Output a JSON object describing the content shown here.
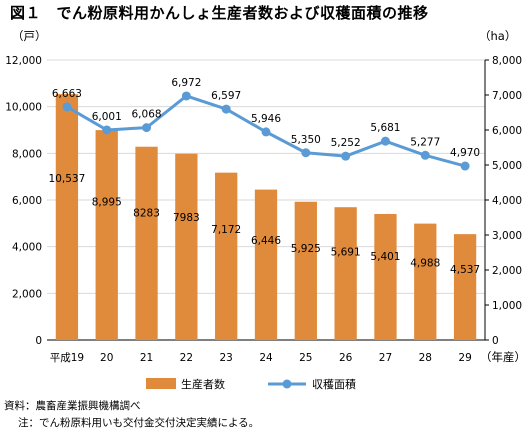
{
  "title": "図１　でん粉原料用かんしょ生産者数および収穫面積の推移",
  "chart_data": {
    "type": "bar+line",
    "categories": [
      "平成19",
      "20",
      "21",
      "22",
      "23",
      "24",
      "25",
      "26",
      "27",
      "28",
      "29"
    ],
    "x_unit": "（年産）",
    "left_axis": {
      "unit": "（戸）",
      "ylim": [
        0,
        12000
      ],
      "ticks": [
        "0",
        "2,000",
        "4,000",
        "6,000",
        "8,000",
        "10,000",
        "12,000"
      ]
    },
    "right_axis": {
      "unit": "（ha）",
      "ylim": [
        0,
        8000
      ],
      "ticks": [
        "0",
        "1,000",
        "2,000",
        "3,000",
        "4,000",
        "5,000",
        "6,000",
        "7,000",
        "8,000"
      ]
    },
    "series": [
      {
        "name": "生産者数",
        "type": "bar",
        "axis": "left",
        "color": "#e08a3c",
        "values": [
          10537,
          8995,
          8283,
          7983,
          7172,
          6446,
          5925,
          5691,
          5401,
          4988,
          4537
        ],
        "labels": [
          "10,537",
          "8,995",
          "8283",
          "7983",
          "7,172",
          "6,446",
          "5,925",
          "5,691",
          "5,401",
          "4,988",
          "4,537"
        ]
      },
      {
        "name": "収穫面積",
        "type": "line",
        "axis": "right",
        "color": "#5b9bd5",
        "values": [
          6663,
          6001,
          6068,
          6972,
          6597,
          5946,
          5350,
          5252,
          5681,
          5277,
          4970
        ],
        "labels": [
          "6,663",
          "6,001",
          "6,068",
          "6,972",
          "6,597",
          "5,946",
          "5,350",
          "5,252",
          "5,681",
          "5,277",
          "4,970"
        ]
      }
    ],
    "legend_position": "bottom",
    "grid": true
  },
  "notes": {
    "source": "資料：農畜産業振興機構調べ",
    "footnote": "注：でん粉原料用いも交付金交付決定実績による。"
  }
}
